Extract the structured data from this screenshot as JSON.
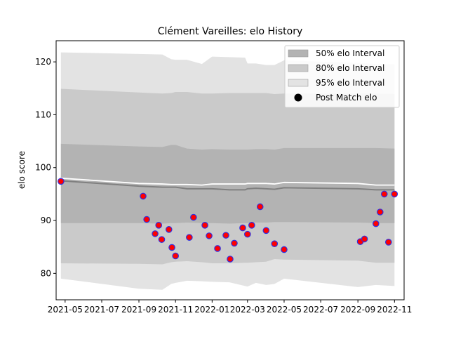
{
  "chart_data": {
    "type": "line",
    "title": "Clément Vareilles: elo History",
    "xlabel": "",
    "ylabel": "elo score",
    "xlim": [
      "2021-04-16",
      "2022-11-17"
    ],
    "ylim": [
      75,
      124
    ],
    "x_ticks": [
      "2021-05-01",
      "2021-07-01",
      "2021-09-01",
      "2021-11-01",
      "2022-01-01",
      "2022-03-01",
      "2022-05-01",
      "2022-07-01",
      "2022-09-01",
      "2022-11-01"
    ],
    "x_tick_labels": [
      "2021-05",
      "2021-07",
      "2021-09",
      "2021-11",
      "2022-01",
      "2022-03",
      "2022-05",
      "2022-07",
      "2022-09",
      "2022-11"
    ],
    "y_ticks": [
      80,
      90,
      100,
      110,
      120
    ],
    "y_tick_labels": [
      "80",
      "90",
      "100",
      "110",
      "120"
    ],
    "legend": {
      "position": "upper right",
      "entries": [
        "50% elo Interval",
        "80% elo Interval",
        "95% elo Interval",
        "Post Match elo"
      ]
    },
    "colors": {
      "band50": "#b3b3b3",
      "band80": "#cacaca",
      "band95": "#e3e3e3",
      "mean_line": "#808080",
      "upper_line": "#ffffff",
      "point_fill": "#ff0000",
      "point_edge": "#3030e0"
    },
    "band_x": [
      "2021-04-24",
      "2021-09-01",
      "2021-10-10",
      "2021-10-25",
      "2021-11-01",
      "2021-11-20",
      "2021-12-15",
      "2022-01-01",
      "2022-01-30",
      "2022-02-25",
      "2022-03-01",
      "2022-03-15",
      "2022-04-01",
      "2022-04-15",
      "2022-05-01",
      "2022-09-01",
      "2022-10-01",
      "2022-11-01"
    ],
    "series": [
      {
        "name": "95% elo Interval",
        "lower": [
          79.0,
          77.1,
          76.9,
          78.0,
          78.2,
          78.6,
          78.5,
          78.4,
          78.3,
          77.6,
          77.5,
          78.2,
          77.8,
          78.0,
          79.0,
          77.4,
          77.8,
          77.6
        ],
        "upper": [
          121.8,
          121.5,
          121.4,
          120.5,
          120.4,
          120.4,
          119.6,
          121.0,
          120.9,
          120.8,
          119.7,
          119.7,
          119.4,
          119.4,
          120.3,
          119.8,
          119.6,
          119.6
        ]
      },
      {
        "name": "80% elo Interval",
        "lower": [
          81.9,
          81.8,
          81.7,
          82.1,
          82.2,
          82.3,
          82.1,
          81.9,
          81.9,
          82.0,
          82.0,
          82.1,
          82.2,
          82.7,
          82.6,
          82.4,
          82.0,
          82.0
        ],
        "upper": [
          114.9,
          114.2,
          114.0,
          114.1,
          114.3,
          114.3,
          114.0,
          114.0,
          114.1,
          114.1,
          114.1,
          114.1,
          114.1,
          113.9,
          114.0,
          114.0,
          114.0,
          113.9
        ]
      },
      {
        "name": "50% elo Interval",
        "lower": [
          89.5,
          89.5,
          89.4,
          89.5,
          89.5,
          89.6,
          89.5,
          89.5,
          89.4,
          89.5,
          89.5,
          89.6,
          89.6,
          89.7,
          89.7,
          89.6,
          89.5,
          89.5
        ],
        "upper": [
          104.5,
          104.0,
          103.9,
          104.3,
          104.3,
          103.6,
          103.4,
          103.5,
          103.4,
          103.4,
          103.4,
          103.5,
          103.5,
          103.4,
          103.7,
          103.7,
          103.7,
          103.6
        ]
      },
      {
        "name": "mean",
        "values": [
          97.5,
          96.5,
          96.3,
          96.3,
          96.3,
          96.0,
          96.0,
          96.0,
          95.8,
          95.8,
          96.0,
          96.1,
          96.0,
          95.9,
          96.2,
          96.0,
          95.8,
          95.8
        ]
      },
      {
        "name": "upper",
        "values": [
          98.0,
          97.0,
          96.9,
          96.8,
          96.8,
          96.8,
          96.7,
          96.9,
          96.9,
          96.9,
          97.0,
          97.0,
          97.0,
          96.9,
          97.2,
          97.0,
          96.7,
          96.7
        ]
      }
    ],
    "points": {
      "name": "Post Match elo",
      "x": [
        "2021-04-24",
        "2021-09-08",
        "2021-09-14",
        "2021-09-28",
        "2021-10-04",
        "2021-10-09",
        "2021-10-21",
        "2021-10-26",
        "2021-11-01",
        "2021-11-24",
        "2021-12-01",
        "2021-12-20",
        "2021-12-27",
        "2022-01-10",
        "2022-01-24",
        "2022-01-31",
        "2022-02-07",
        "2022-02-21",
        "2022-03-01",
        "2022-03-08",
        "2022-03-22",
        "2022-04-01",
        "2022-04-15",
        "2022-05-01",
        "2022-09-05",
        "2022-09-12",
        "2022-10-01",
        "2022-10-08",
        "2022-10-15",
        "2022-10-22",
        "2022-11-01"
      ],
      "y": [
        97.4,
        94.6,
        90.2,
        87.5,
        89.1,
        86.4,
        88.3,
        84.9,
        83.3,
        86.8,
        90.6,
        89.1,
        87.1,
        84.7,
        87.2,
        82.7,
        85.7,
        88.6,
        87.4,
        89.1,
        92.6,
        88.1,
        85.6,
        84.5,
        86.0,
        86.5,
        89.4,
        91.6,
        95.0,
        85.9,
        95.0
      ]
    }
  }
}
